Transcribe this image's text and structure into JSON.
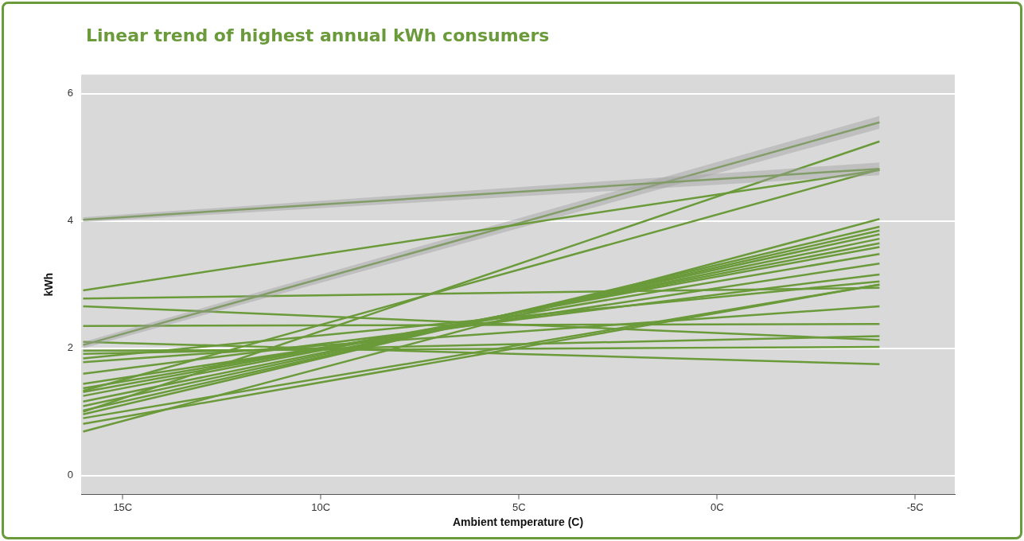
{
  "chart_data": {
    "type": "line",
    "title": "Linear trend of highest annual kWh consumers",
    "xlabel": "Ambient temperature (C)",
    "ylabel": "kWh",
    "x": [
      16,
      -4.1
    ],
    "xlim": [
      16.05,
      -6.0
    ],
    "xticks": [
      {
        "value": 15,
        "label": "15C"
      },
      {
        "value": 10,
        "label": "10C"
      },
      {
        "value": 5,
        "label": "5C"
      },
      {
        "value": 0,
        "label": "0C"
      },
      {
        "value": -5,
        "label": "-5C"
      }
    ],
    "ylim": [
      -0.3,
      6.3
    ],
    "yticks": [
      0,
      2,
      4,
      6
    ],
    "grid": "y",
    "legend": false,
    "marker": "none",
    "line_style": "solid",
    "series": [
      {
        "color": "#6a9a3a",
        "values": [
          4.02,
          4.82
        ],
        "lower": [
          3.98,
          4.72
        ],
        "upper": [
          4.06,
          4.92
        ]
      },
      {
        "color": "#6a9a3a",
        "values": [
          2.91,
          4.8
        ]
      },
      {
        "color": "#6a9a3a",
        "values": [
          2.05,
          5.55
        ],
        "lower": [
          2.0,
          5.45
        ],
        "upper": [
          2.1,
          5.65
        ]
      },
      {
        "color": "#6a9a3a",
        "values": [
          1.0,
          5.25
        ]
      },
      {
        "color": "#6a9a3a",
        "values": [
          1.33,
          4.81
        ]
      },
      {
        "color": "#6a9a3a",
        "values": [
          2.78,
          2.95
        ]
      },
      {
        "color": "#6a9a3a",
        "values": [
          2.66,
          2.13
        ]
      },
      {
        "color": "#6a9a3a",
        "values": [
          2.35,
          2.38
        ]
      },
      {
        "color": "#6a9a3a",
        "values": [
          2.1,
          1.75
        ]
      },
      {
        "color": "#6a9a3a",
        "values": [
          1.96,
          2.02
        ]
      },
      {
        "color": "#6a9a3a",
        "values": [
          1.91,
          2.19
        ]
      },
      {
        "color": "#6a9a3a",
        "values": [
          1.84,
          3.05
        ]
      },
      {
        "color": "#6a9a3a",
        "values": [
          1.78,
          2.66
        ]
      },
      {
        "color": "#6a9a3a",
        "values": [
          1.6,
          3.16
        ]
      },
      {
        "color": "#6a9a3a",
        "values": [
          1.44,
          3.33
        ]
      },
      {
        "color": "#6a9a3a",
        "values": [
          1.37,
          3.48
        ]
      },
      {
        "color": "#6a9a3a",
        "values": [
          1.31,
          3.59
        ]
      },
      {
        "color": "#6a9a3a",
        "values": [
          1.25,
          3.65
        ]
      },
      {
        "color": "#6a9a3a",
        "values": [
          1.16,
          3.72
        ]
      },
      {
        "color": "#6a9a3a",
        "values": [
          1.09,
          3.79
        ]
      },
      {
        "color": "#6a9a3a",
        "values": [
          1.02,
          3.85
        ]
      },
      {
        "color": "#6a9a3a",
        "values": [
          0.96,
          3.91
        ]
      },
      {
        "color": "#6a9a3a",
        "values": [
          0.9,
          3.0
        ]
      },
      {
        "color": "#6a9a3a",
        "values": [
          0.81,
          3.0
        ]
      },
      {
        "color": "#6a9a3a",
        "values": [
          0.69,
          4.03
        ]
      }
    ]
  }
}
